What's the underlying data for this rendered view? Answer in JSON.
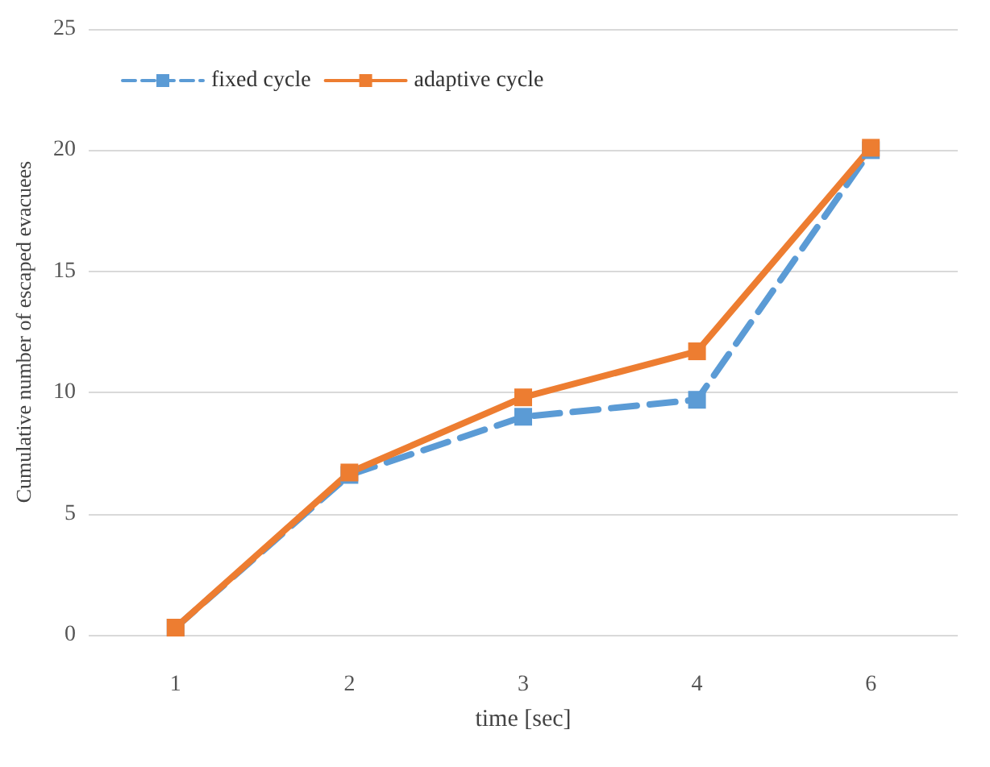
{
  "chart_data": {
    "type": "line",
    "xlabel": "time [sec]",
    "ylabel": "Cumulative number of escaped evacuees",
    "categories": [
      "1",
      "2",
      "3",
      "4",
      "6"
    ],
    "series": [
      {
        "name": "fixed cycle",
        "color": "#5b9bd5",
        "line_style": "dashed",
        "values": [
          0.3,
          6.6,
          9.0,
          9.7,
          20.0
        ]
      },
      {
        "name": "adaptive cycle",
        "color": "#ed7d31",
        "line_style": "solid",
        "values": [
          0.3,
          6.7,
          9.8,
          11.7,
          20.1
        ]
      }
    ],
    "ylim": [
      0,
      25
    ],
    "yticks": [
      0,
      5,
      10,
      15,
      20,
      25
    ],
    "grid": "y",
    "legend": "top left",
    "marker": "square"
  }
}
